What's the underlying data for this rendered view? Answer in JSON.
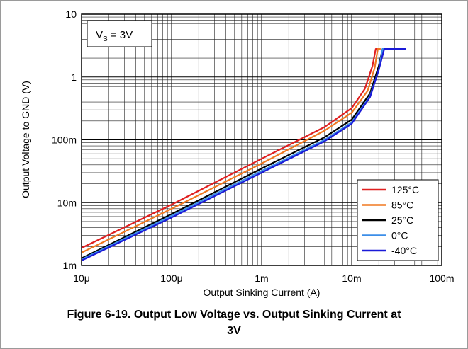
{
  "caption": {
    "line1": "Figure 6-19. Output Low Voltage vs. Output Sinking Current at",
    "line2": "3V"
  },
  "annotation": {
    "prefix": "V",
    "subscript": "S",
    "suffix": " = 3V"
  },
  "chart_data": {
    "type": "line",
    "title": "",
    "xlabel": "Output Sinking Current (A)",
    "ylabel": "Output Voltage to GND (V)",
    "xscale": "log",
    "yscale": "log",
    "xlim": [
      1e-05,
      0.1
    ],
    "ylim": [
      0.001,
      10
    ],
    "x_ticks": [
      {
        "value": 1e-05,
        "label": "10μ"
      },
      {
        "value": 0.0001,
        "label": "100μ"
      },
      {
        "value": 0.001,
        "label": "1m"
      },
      {
        "value": 0.01,
        "label": "10m"
      },
      {
        "value": 0.1,
        "label": "100m"
      }
    ],
    "y_ticks": [
      {
        "value": 0.001,
        "label": "1m"
      },
      {
        "value": 0.01,
        "label": "10m"
      },
      {
        "value": 0.1,
        "label": "100m"
      },
      {
        "value": 1,
        "label": "1"
      },
      {
        "value": 10,
        "label": "10"
      }
    ],
    "grid": true,
    "legend_position": "bottom-right",
    "series": [
      {
        "name": "125°C",
        "color": "#e02020",
        "x": [
          1e-05,
          0.0001,
          0.001,
          0.005,
          0.01,
          0.014,
          0.017,
          0.0185,
          0.0195,
          0.02
        ],
        "y": [
          0.0019,
          0.0093,
          0.05,
          0.16,
          0.32,
          0.65,
          1.5,
          2.8,
          2.8,
          2.8
        ]
      },
      {
        "name": "85°C",
        "color": "#f07820",
        "x": [
          1e-05,
          0.0001,
          0.001,
          0.005,
          0.01,
          0.015,
          0.018,
          0.0195,
          0.0205,
          0.021
        ],
        "y": [
          0.0016,
          0.008,
          0.042,
          0.14,
          0.27,
          0.6,
          1.4,
          2.8,
          2.8,
          2.8
        ]
      },
      {
        "name": "25°C",
        "color": "#000000",
        "x": [
          1e-05,
          0.0001,
          0.001,
          0.005,
          0.01,
          0.016,
          0.02,
          0.022,
          0.023,
          0.025
        ],
        "y": [
          0.0013,
          0.0066,
          0.035,
          0.11,
          0.21,
          0.55,
          1.5,
          2.8,
          2.8,
          2.8
        ]
      },
      {
        "name": "0°C",
        "color": "#3c8ee8",
        "x": [
          1e-05,
          0.0001,
          0.001,
          0.005,
          0.01,
          0.016,
          0.02,
          0.022,
          0.025,
          0.03
        ],
        "y": [
          0.00125,
          0.0062,
          0.032,
          0.1,
          0.19,
          0.5,
          1.3,
          2.8,
          2.8,
          2.8
        ]
      },
      {
        "name": "-40°C",
        "color": "#1a1ad8",
        "x": [
          1e-05,
          0.0001,
          0.001,
          0.005,
          0.01,
          0.016,
          0.02,
          0.023,
          0.03,
          0.04
        ],
        "y": [
          0.0012,
          0.0058,
          0.03,
          0.095,
          0.18,
          0.48,
          1.3,
          2.8,
          2.8,
          2.8
        ]
      }
    ]
  }
}
